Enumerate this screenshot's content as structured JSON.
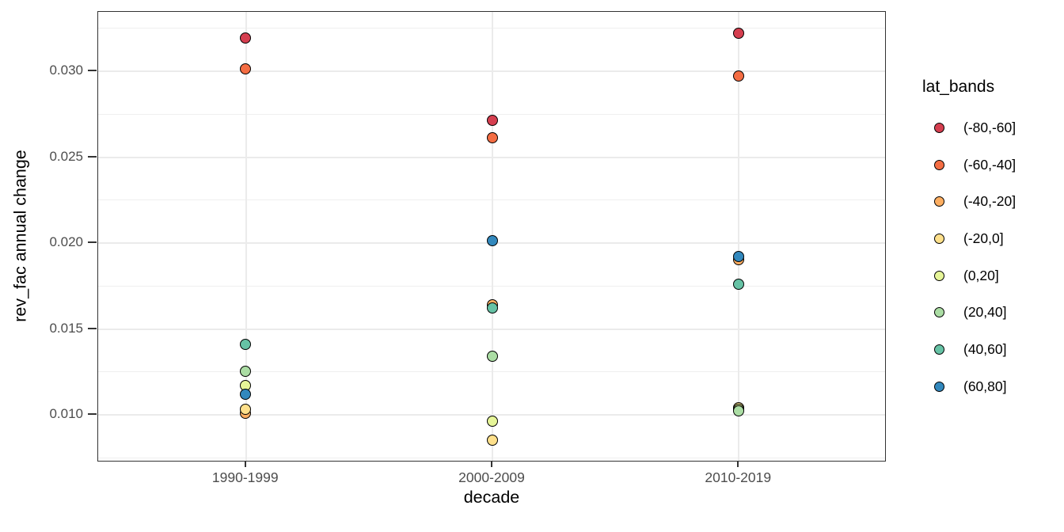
{
  "chart_data": {
    "type": "scatter",
    "title": "",
    "xlabel": "decade",
    "ylabel": "rev_fac annual change",
    "legend_title": "lat_bands",
    "legend_position": "right",
    "categories": [
      "1990-1999",
      "2000-2009",
      "2010-2019"
    ],
    "ylim": [
      0.00725,
      0.03345
    ],
    "yticks_major": [
      0.01,
      0.015,
      0.02,
      0.025,
      0.03
    ],
    "ytick_labels": [
      "0.010",
      "0.015",
      "0.020",
      "0.025",
      "0.030"
    ],
    "yticks_minor": [
      0.0075,
      0.0125,
      0.0175,
      0.0225,
      0.0275,
      0.0325
    ],
    "grid": true,
    "series": [
      {
        "name": "(-80,-60]",
        "color": "#d53e4f",
        "values": [
          0.0319,
          0.0271,
          0.0322
        ]
      },
      {
        "name": "(-60,-40]",
        "color": "#f46d43",
        "values": [
          0.0301,
          0.0261,
          0.0297
        ]
      },
      {
        "name": "(-40,-20]",
        "color": "#fdae61",
        "values": [
          0.0101,
          0.0164,
          0.019
        ]
      },
      {
        "name": "(-20,0]",
        "color": "#fee08b",
        "values": [
          0.0103,
          0.0085,
          0.0104
        ]
      },
      {
        "name": "(0,20]",
        "color": "#e6f598",
        "values": [
          0.0117,
          0.0096,
          0.0103
        ]
      },
      {
        "name": "(20,40]",
        "color": "#abdda4",
        "values": [
          0.0125,
          0.0134,
          0.0102
        ]
      },
      {
        "name": "(40,60]",
        "color": "#66c2a5",
        "values": [
          0.0141,
          0.0162,
          0.0176
        ]
      },
      {
        "name": "(60,80]",
        "color": "#3288bd",
        "values": [
          0.0112,
          0.0201,
          0.0192
        ]
      }
    ],
    "colors": {
      "background": "#ffffff",
      "panel_border": "#333333",
      "grid": "#ebebeb",
      "tick": "#333333",
      "tick_label": "#4d4d4d",
      "axis_title": "#000000",
      "point_stroke": "#000000"
    }
  }
}
